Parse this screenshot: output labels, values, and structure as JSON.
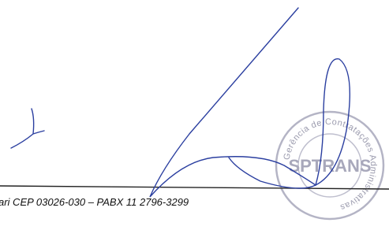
{
  "footer": {
    "text": "ari CEP 03026-030 – PABX 11 2796-3299"
  },
  "stamp": {
    "ring_text": "Gerência de Contratações Administrativas",
    "center_text": "SPTRANS"
  }
}
